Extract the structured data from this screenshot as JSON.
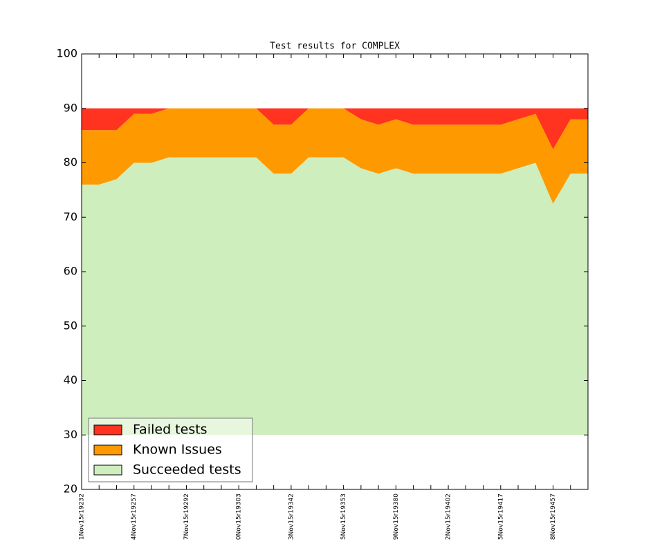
{
  "chart_data": {
    "type": "stacked_area",
    "title": "Test results for COMPLEX",
    "categories": [
      "1Nov15r19232",
      null,
      null,
      "4Nov15r19257",
      null,
      null,
      "7Nov15r19292",
      null,
      null,
      "0Nov15r19303",
      null,
      null,
      "3Nov15r19342",
      null,
      null,
      "5Nov15r19353",
      null,
      null,
      "9Nov15r19380",
      null,
      null,
      "2Nov15r19402",
      null,
      null,
      "5Nov15r19417",
      null,
      null,
      "8Nov15r19457",
      null,
      null
    ],
    "baseline": 30,
    "series": [
      {
        "name": "Failed tests",
        "color": "#ff331f",
        "values": [
          4,
          4,
          4,
          1,
          1,
          0,
          0,
          0,
          0,
          0,
          0,
          3,
          3,
          0,
          0,
          0,
          2,
          3,
          2,
          3,
          3,
          3,
          3,
          3,
          3,
          2,
          1,
          7.5,
          2,
          2
        ]
      },
      {
        "name": "Known Issues",
        "color": "#ff9900",
        "values": [
          10,
          10,
          9,
          9,
          9,
          9,
          9,
          9,
          9,
          9,
          9,
          9,
          9,
          9,
          9,
          9,
          9,
          9,
          9,
          9,
          9,
          9,
          9,
          9,
          9,
          9,
          9,
          10,
          10,
          10
        ]
      },
      {
        "name": "Succeeded tests",
        "color": "#ceeebd",
        "values": [
          76,
          76,
          77,
          80,
          80,
          81,
          81,
          81,
          81,
          81,
          81,
          78,
          78,
          81,
          81,
          81,
          79,
          78,
          79,
          78,
          78,
          78,
          78,
          78,
          78,
          79,
          80,
          72.5,
          78,
          78
        ]
      }
    ],
    "ylim": [
      20,
      100
    ],
    "yticks": [
      20,
      30,
      40,
      50,
      60,
      70,
      80,
      90,
      100
    ],
    "legend": "lower left"
  }
}
